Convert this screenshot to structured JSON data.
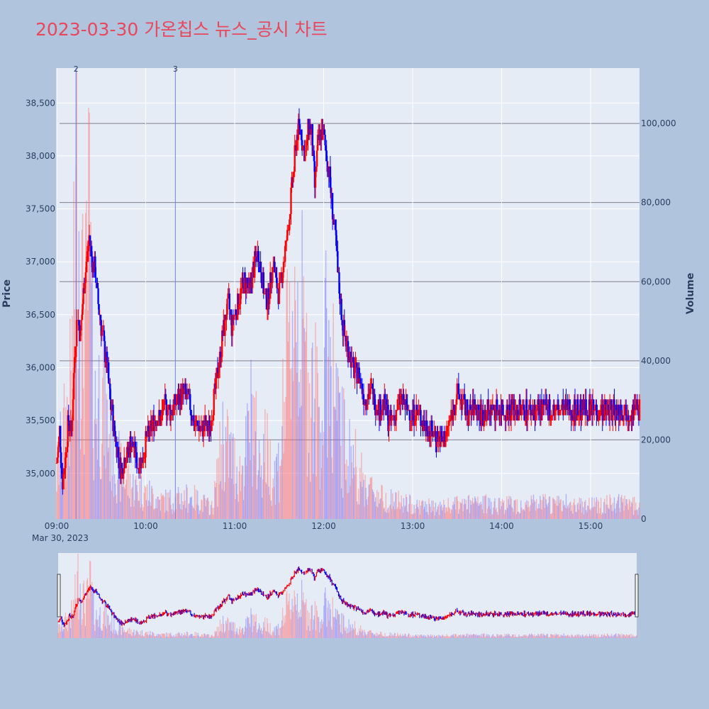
{
  "chart_data": {
    "type": "candlestick",
    "title": "2023-03-30 가온칩스 뉴스_공시 차트",
    "date_label": "Mar 30, 2023",
    "ylabel": "Price",
    "y2label": "Volume",
    "ylim": [
      34570,
      38830
    ],
    "y2lim": [
      0,
      114000
    ],
    "xlim_minutes": [
      540,
      933
    ],
    "price_ticks": [
      "35,000",
      "35,500",
      "36,000",
      "36,500",
      "37,000",
      "37,500",
      "38,000",
      "38,500"
    ],
    "price_tick_values": [
      35000,
      35500,
      36000,
      36500,
      37000,
      37500,
      38000,
      38500
    ],
    "volume_ticks": [
      "0",
      "20,000",
      "40,000",
      "60,000",
      "80,000",
      "100,000"
    ],
    "volume_tick_values": [
      0,
      20000,
      40000,
      60000,
      80000,
      100000
    ],
    "time_ticks": [
      "09:00",
      "10:00",
      "11:00",
      "12:00",
      "13:00",
      "14:00",
      "15:00"
    ],
    "time_tick_values": [
      540,
      600,
      660,
      720,
      780,
      840,
      900
    ],
    "news_markers": [
      {
        "label": "2",
        "time": 553
      },
      {
        "label": "3",
        "time": 620
      }
    ],
    "up_color": "#ff0000",
    "down_color": "#0000ff",
    "price_keypoints": [
      [
        540,
        35100
      ],
      [
        542,
        35400
      ],
      [
        544,
        34900
      ],
      [
        546,
        35200
      ],
      [
        548,
        35500
      ],
      [
        550,
        35400
      ],
      [
        552,
        36100
      ],
      [
        554,
        36500
      ],
      [
        556,
        36300
      ],
      [
        558,
        36700
      ],
      [
        560,
        37000
      ],
      [
        562,
        37250
      ],
      [
        564,
        37000
      ],
      [
        566,
        36900
      ],
      [
        568,
        36600
      ],
      [
        570,
        36400
      ],
      [
        572,
        36200
      ],
      [
        574,
        36000
      ],
      [
        576,
        35700
      ],
      [
        578,
        35500
      ],
      [
        580,
        35300
      ],
      [
        582,
        35100
      ],
      [
        584,
        35050
      ],
      [
        586,
        35150
      ],
      [
        588,
        35200
      ],
      [
        590,
        35300
      ],
      [
        592,
        35250
      ],
      [
        594,
        35100
      ],
      [
        596,
        35100
      ],
      [
        598,
        35150
      ],
      [
        600,
        35300
      ],
      [
        602,
        35350
      ],
      [
        604,
        35450
      ],
      [
        606,
        35500
      ],
      [
        608,
        35550
      ],
      [
        610,
        35500
      ],
      [
        612,
        35600
      ],
      [
        614,
        35650
      ],
      [
        616,
        35600
      ],
      [
        618,
        35600
      ],
      [
        620,
        35650
      ],
      [
        622,
        35700
      ],
      [
        624,
        35750
      ],
      [
        626,
        35750
      ],
      [
        628,
        35700
      ],
      [
        630,
        35650
      ],
      [
        632,
        35500
      ],
      [
        634,
        35450
      ],
      [
        636,
        35450
      ],
      [
        638,
        35400
      ],
      [
        640,
        35450
      ],
      [
        642,
        35400
      ],
      [
        644,
        35500
      ],
      [
        646,
        35700
      ],
      [
        648,
        35900
      ],
      [
        650,
        36100
      ],
      [
        652,
        36300
      ],
      [
        654,
        36500
      ],
      [
        656,
        36600
      ],
      [
        658,
        36400
      ],
      [
        660,
        36500
      ],
      [
        662,
        36600
      ],
      [
        664,
        36700
      ],
      [
        666,
        36800
      ],
      [
        668,
        36800
      ],
      [
        670,
        36750
      ],
      [
        672,
        36900
      ],
      [
        674,
        37000
      ],
      [
        676,
        37100
      ],
      [
        678,
        36900
      ],
      [
        680,
        36700
      ],
      [
        682,
        36600
      ],
      [
        684,
        36800
      ],
      [
        686,
        37000
      ],
      [
        688,
        36800
      ],
      [
        690,
        36700
      ],
      [
        692,
        36900
      ],
      [
        694,
        37100
      ],
      [
        696,
        37300
      ],
      [
        698,
        37600
      ],
      [
        700,
        37900
      ],
      [
        702,
        38200
      ],
      [
        704,
        38300
      ],
      [
        706,
        38100
      ],
      [
        708,
        38000
      ],
      [
        710,
        38300
      ],
      [
        712,
        38200
      ],
      [
        714,
        37700
      ],
      [
        716,
        38100
      ],
      [
        718,
        38200
      ],
      [
        720,
        38200
      ],
      [
        722,
        38000
      ],
      [
        724,
        37800
      ],
      [
        726,
        37500
      ],
      [
        728,
        37200
      ],
      [
        730,
        36800
      ],
      [
        732,
        36500
      ],
      [
        734,
        36300
      ],
      [
        736,
        36200
      ],
      [
        738,
        36100
      ],
      [
        740,
        36000
      ],
      [
        742,
        35950
      ],
      [
        744,
        35900
      ],
      [
        746,
        35800
      ],
      [
        748,
        35700
      ],
      [
        750,
        35750
      ],
      [
        752,
        35800
      ],
      [
        754,
        35700
      ],
      [
        756,
        35650
      ],
      [
        758,
        35600
      ],
      [
        760,
        35650
      ],
      [
        762,
        35600
      ],
      [
        764,
        35500
      ],
      [
        766,
        35500
      ],
      [
        768,
        35550
      ],
      [
        770,
        35650
      ],
      [
        772,
        35700
      ],
      [
        774,
        35650
      ],
      [
        776,
        35600
      ],
      [
        778,
        35600
      ],
      [
        780,
        35550
      ],
      [
        782,
        35600
      ],
      [
        784,
        35550
      ],
      [
        786,
        35500
      ],
      [
        788,
        35450
      ],
      [
        790,
        35450
      ],
      [
        792,
        35400
      ],
      [
        794,
        35400
      ],
      [
        796,
        35350
      ],
      [
        798,
        35350
      ],
      [
        800,
        35300
      ],
      [
        802,
        35350
      ],
      [
        804,
        35450
      ],
      [
        806,
        35550
      ],
      [
        808,
        35650
      ],
      [
        810,
        35750
      ],
      [
        812,
        35700
      ],
      [
        814,
        35650
      ],
      [
        816,
        35600
      ],
      [
        818,
        35550
      ],
      [
        820,
        35600
      ],
      [
        822,
        35650
      ],
      [
        824,
        35600
      ],
      [
        826,
        35550
      ],
      [
        828,
        35550
      ],
      [
        830,
        35600
      ],
      [
        832,
        35550
      ],
      [
        833,
        35600
      ]
    ],
    "volume_keypoints": [
      [
        540,
        12000
      ],
      [
        546,
        25000
      ],
      [
        550,
        35000
      ],
      [
        552,
        60000
      ],
      [
        554,
        90000
      ],
      [
        556,
        70000
      ],
      [
        558,
        45000
      ],
      [
        560,
        55000
      ],
      [
        562,
        75000
      ],
      [
        564,
        40000
      ],
      [
        566,
        30000
      ],
      [
        570,
        35000
      ],
      [
        574,
        25000
      ],
      [
        578,
        18000
      ],
      [
        584,
        12000
      ],
      [
        590,
        9000
      ],
      [
        600,
        7000
      ],
      [
        610,
        5000
      ],
      [
        620,
        5000
      ],
      [
        630,
        6000
      ],
      [
        640,
        4000
      ],
      [
        645,
        3000
      ],
      [
        648,
        10000
      ],
      [
        652,
        22000
      ],
      [
        656,
        18000
      ],
      [
        660,
        15000
      ],
      [
        664,
        12000
      ],
      [
        668,
        18000
      ],
      [
        672,
        30000
      ],
      [
        676,
        15000
      ],
      [
        680,
        20000
      ],
      [
        686,
        12000
      ],
      [
        690,
        15000
      ],
      [
        694,
        35000
      ],
      [
        698,
        48000
      ],
      [
        700,
        62000
      ],
      [
        704,
        55000
      ],
      [
        708,
        40000
      ],
      [
        712,
        35000
      ],
      [
        716,
        30000
      ],
      [
        720,
        28000
      ],
      [
        722,
        50000
      ],
      [
        726,
        40000
      ],
      [
        730,
        25000
      ],
      [
        736,
        18000
      ],
      [
        742,
        15000
      ],
      [
        746,
        10000
      ],
      [
        752,
        8000
      ],
      [
        758,
        6000
      ],
      [
        766,
        5000
      ],
      [
        776,
        4000
      ],
      [
        786,
        3500
      ],
      [
        796,
        3000
      ],
      [
        806,
        3500
      ],
      [
        816,
        4000
      ],
      [
        826,
        4000
      ],
      [
        833,
        4000
      ]
    ]
  }
}
